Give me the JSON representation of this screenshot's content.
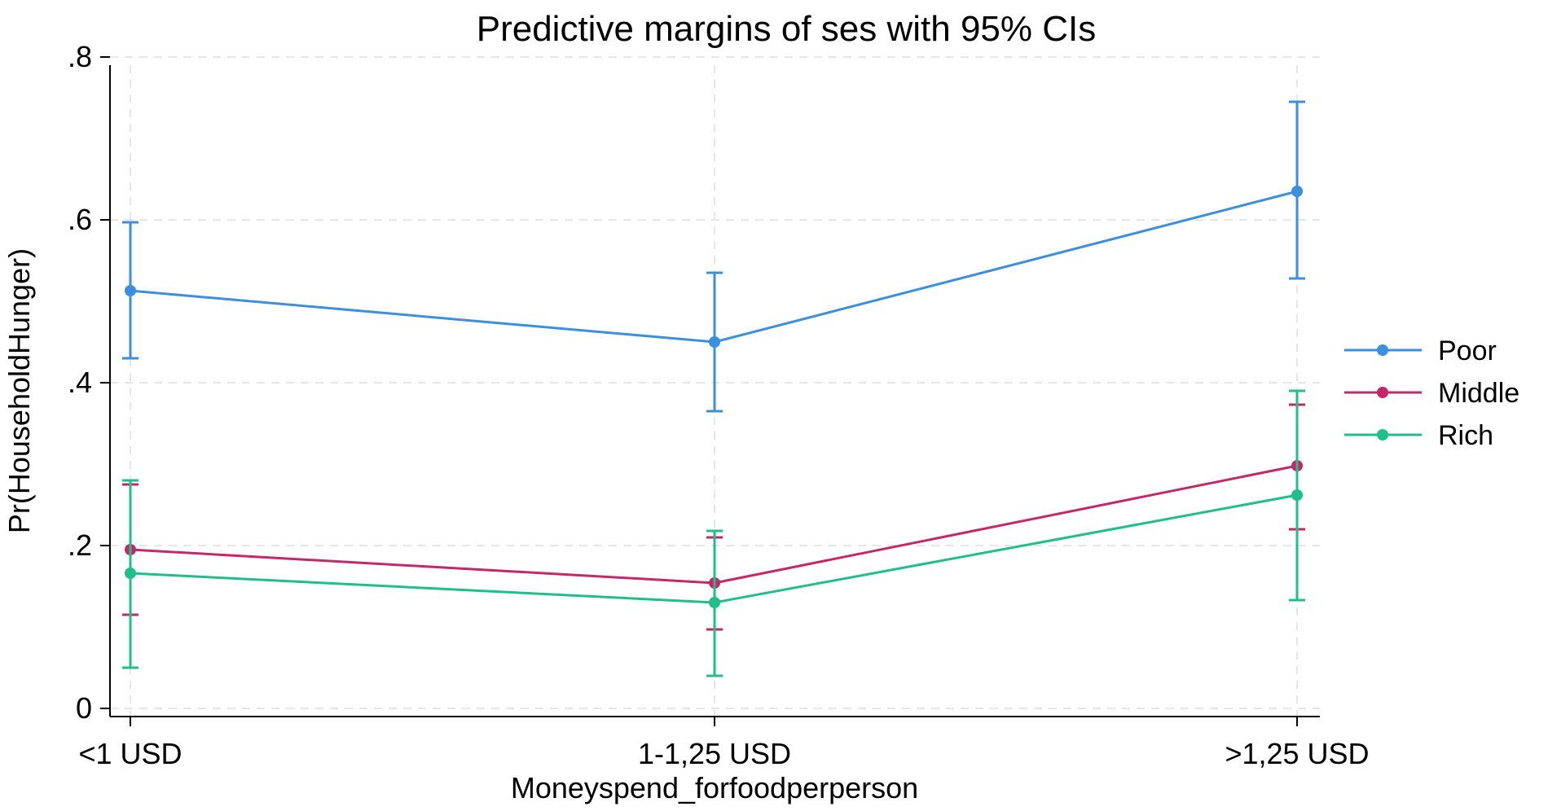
{
  "chart_data": {
    "type": "line",
    "title": "Predictive margins of ses with 95% CIs",
    "xlabel": "Moneyspend_forfoodperperson",
    "ylabel": "Pr(HouseholdHunger)",
    "categories": [
      "<1 USD",
      "1-1,25 USD",
      ">1,25 USD"
    ],
    "ylim": [
      0,
      0.8
    ],
    "yticks": [
      0,
      0.2,
      0.4,
      0.6,
      0.8
    ],
    "ytick_labels": [
      "0",
      ".2",
      ".4",
      ".6",
      ".8"
    ],
    "grid": true,
    "legend_position": "right",
    "series": [
      {
        "name": "Poor",
        "color": "#3b8fdf",
        "values": [
          0.513,
          0.45,
          0.635
        ],
        "ci_low": [
          0.43,
          0.365,
          0.528
        ],
        "ci_high": [
          0.597,
          0.535,
          0.745
        ]
      },
      {
        "name": "Middle",
        "color": "#c4286a",
        "values": [
          0.195,
          0.154,
          0.298
        ],
        "ci_low": [
          0.115,
          0.097,
          0.22
        ],
        "ci_high": [
          0.275,
          0.21,
          0.373
        ]
      },
      {
        "name": "Rich",
        "color": "#1fbf8a",
        "values": [
          0.166,
          0.13,
          0.262
        ],
        "ci_low": [
          0.05,
          0.04,
          0.133
        ],
        "ci_high": [
          0.28,
          0.218,
          0.39
        ]
      }
    ]
  }
}
